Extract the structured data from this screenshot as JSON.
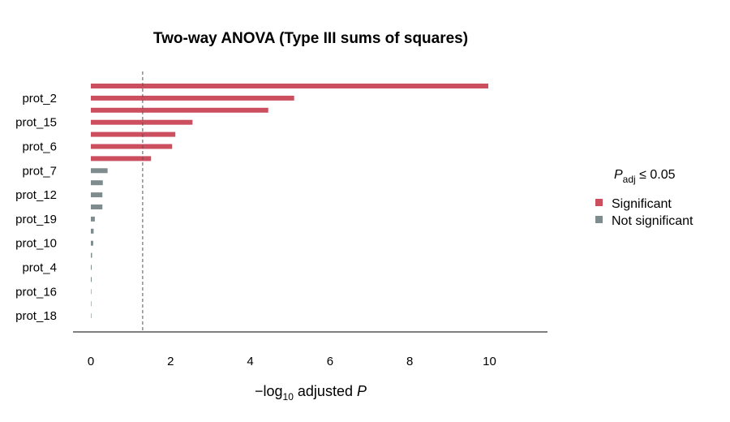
{
  "chart_data": {
    "type": "bar",
    "orientation": "horizontal",
    "title": "Two-way ANOVA (Type III sums of squares)",
    "xlabel": {
      "prefix": "−log",
      "sub": "10",
      "middle": " adjusted ",
      "var": "P"
    },
    "ylabel": "",
    "xlim": [
      0,
      11.2
    ],
    "xticks": [
      0,
      2,
      4,
      6,
      8,
      10
    ],
    "threshold": 1.3,
    "categories": [
      "",
      "prot_2",
      "",
      "prot_15",
      "",
      "prot_6",
      "",
      "prot_7",
      "",
      "prot_12",
      "",
      "prot_19",
      "",
      "prot_10",
      "",
      "prot_4",
      "",
      "prot_16",
      "",
      "prot_18"
    ],
    "values": [
      9.97,
      5.1,
      4.45,
      2.55,
      2.12,
      2.04,
      1.51,
      0.42,
      0.3,
      0.29,
      0.29,
      0.1,
      0.07,
      0.06,
      0.03,
      0.02,
      0.02,
      0.01,
      0.01,
      0.01
    ],
    "significant": [
      true,
      true,
      true,
      true,
      true,
      true,
      true,
      false,
      false,
      false,
      false,
      false,
      false,
      false,
      false,
      false,
      false,
      false,
      false,
      false
    ],
    "grid": false,
    "legend": {
      "placement": "right",
      "title": {
        "var": "P",
        "sub": "adj",
        "rest": " ≤ 0.05"
      },
      "entries": [
        {
          "label": "Significant",
          "color": "#CC4F60"
        },
        {
          "label": "Not significant",
          "color": "#7F8C8D"
        }
      ]
    },
    "colors": {
      "significant": "#CC4F60",
      "not_significant": "#7F8C8D"
    }
  }
}
